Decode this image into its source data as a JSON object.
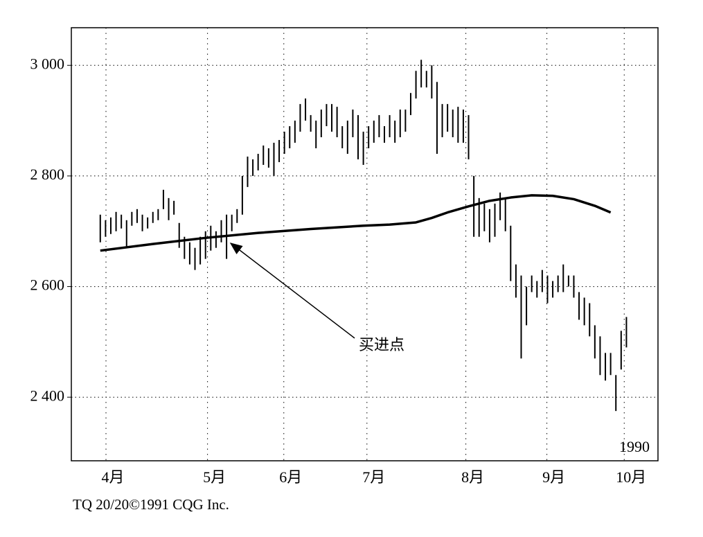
{
  "chart_data": {
    "type": "ohlc",
    "high": [
      2730,
      2720,
      2725,
      2735,
      2730,
      2720,
      2735,
      2740,
      2730,
      2725,
      2735,
      2740,
      2775,
      2760,
      2755,
      2715,
      2690,
      2680,
      2670,
      2690,
      2700,
      2710,
      2700,
      2720,
      2730,
      2730,
      2740,
      2800,
      2835,
      2830,
      2840,
      2855,
      2850,
      2860,
      2865,
      2880,
      2890,
      2900,
      2930,
      2940,
      2910,
      2900,
      2920,
      2930,
      2930,
      2925,
      2890,
      2900,
      2920,
      2910,
      2880,
      2890,
      2900,
      2910,
      2890,
      2910,
      2900,
      2920,
      2920,
      2950,
      2990,
      3010,
      2990,
      3000,
      2970,
      2930,
      2930,
      2920,
      2925,
      2920,
      2910,
      2800,
      2760,
      2750,
      2740,
      2750,
      2770,
      2760,
      2710,
      2640,
      2620,
      2600,
      2620,
      2610,
      2630,
      2620,
      2610,
      2620,
      2640,
      2620,
      2620,
      2590,
      2580,
      2570,
      2530,
      2510,
      2480,
      2480,
      2440,
      2520,
      2545
    ],
    "low": [
      2680,
      2690,
      2695,
      2700,
      2705,
      2670,
      2710,
      2715,
      2700,
      2705,
      2715,
      2720,
      2740,
      2720,
      2730,
      2670,
      2650,
      2640,
      2630,
      2640,
      2650,
      2665,
      2670,
      2680,
      2650,
      2700,
      2715,
      2730,
      2780,
      2800,
      2810,
      2820,
      2815,
      2800,
      2825,
      2840,
      2850,
      2860,
      2880,
      2900,
      2880,
      2850,
      2870,
      2890,
      2880,
      2870,
      2850,
      2840,
      2870,
      2830,
      2820,
      2850,
      2860,
      2870,
      2860,
      2870,
      2860,
      2870,
      2880,
      2910,
      2940,
      2960,
      2960,
      2940,
      2840,
      2870,
      2880,
      2870,
      2860,
      2860,
      2830,
      2690,
      2690,
      2700,
      2680,
      2690,
      2720,
      2700,
      2610,
      2580,
      2470,
      2530,
      2590,
      2580,
      2590,
      2570,
      2580,
      2590,
      2590,
      2600,
      2580,
      2540,
      2530,
      2510,
      2470,
      2440,
      2430,
      2440,
      2375,
      2450,
      2490
    ],
    "ma": {
      "x": [
        0,
        10,
        20,
        30,
        40,
        50,
        55,
        60,
        63,
        66,
        70,
        74,
        78,
        82,
        86,
        90,
        94,
        97
      ],
      "values": [
        2665,
        2677,
        2688,
        2697,
        2704,
        2710,
        2712,
        2716,
        2724,
        2734,
        2745,
        2755,
        2761,
        2765,
        2764,
        2758,
        2746,
        2734
      ]
    },
    "annotation": "买进点",
    "year_label": "1990",
    "source": "TQ 20/20©1991 CQG Inc.",
    "xlim": [
      -5.5,
      106
    ],
    "xticks": [
      {
        "value": 2.4,
        "label": "4月"
      },
      {
        "value": 21.7,
        "label": "5月"
      },
      {
        "value": 36.2,
        "label": "6月"
      },
      {
        "value": 52,
        "label": "7月"
      },
      {
        "value": 70.8,
        "label": "8月"
      },
      {
        "value": 86.2,
        "label": "9月"
      },
      {
        "value": 100.9,
        "label": "10月"
      }
    ],
    "ylim": [
      2285,
      3068
    ],
    "yticks": [
      {
        "value": 2400,
        "label": "2 400"
      },
      {
        "value": 2600,
        "label": "2 600"
      },
      {
        "value": 2800,
        "label": "2 800"
      },
      {
        "value": 3000,
        "label": "3 000"
      }
    ],
    "grid": true,
    "color": "#000000"
  }
}
